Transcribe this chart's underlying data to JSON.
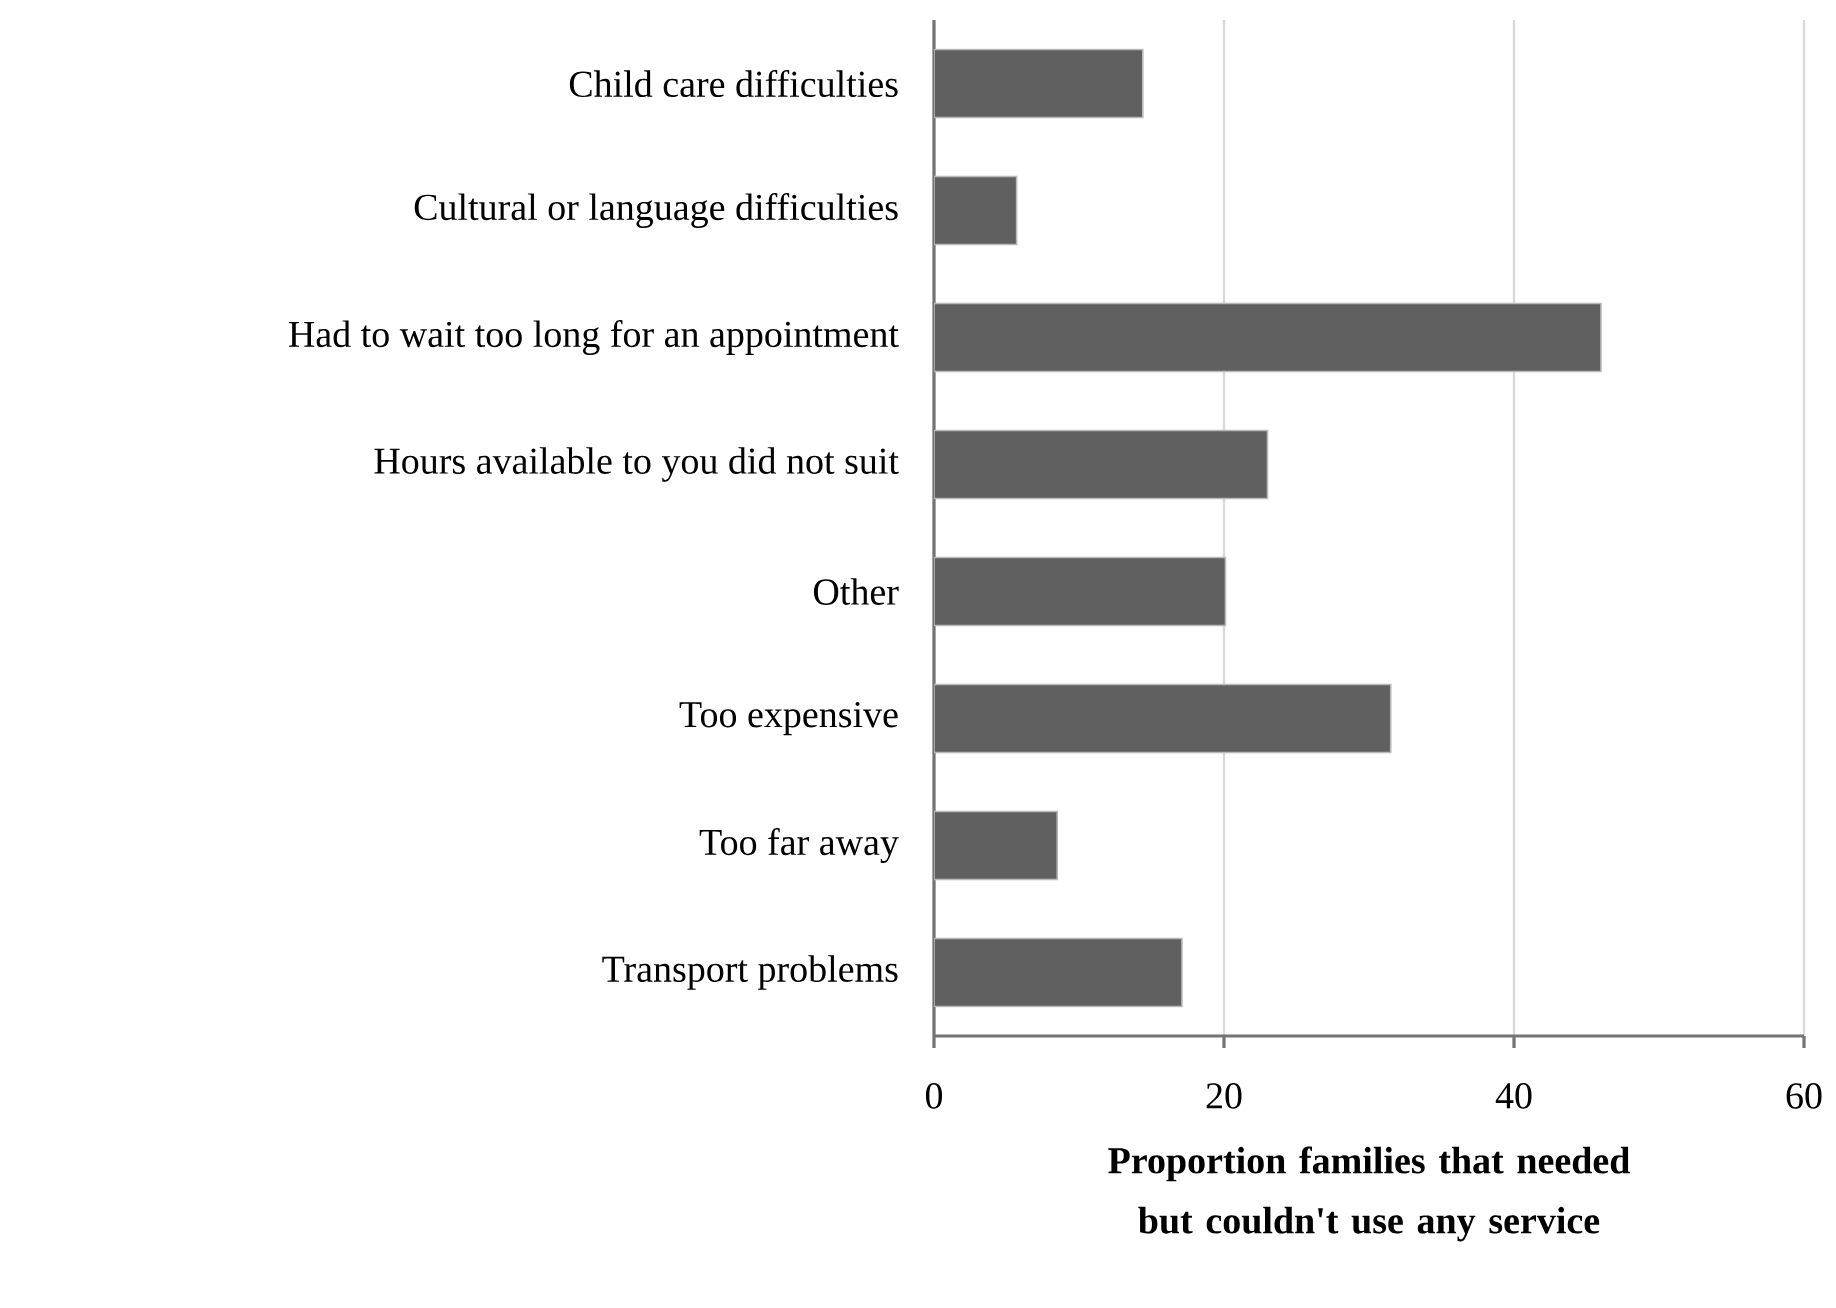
{
  "chart_data": {
    "type": "bar",
    "orientation": "horizontal",
    "categories": [
      "Child care difficulties",
      "Cultural or language difficulties",
      "Had to wait too long for an appointment",
      "Hours available to you did not suit",
      "Other",
      "Too expensive",
      "Too far away",
      "Transport problems"
    ],
    "values": [
      14.4,
      5.7,
      46.0,
      23.0,
      20.1,
      31.5,
      8.5,
      17.1
    ],
    "color": "#606060",
    "xlabel": "Proportion families that needed but couldn't use any service",
    "xlim": [
      0,
      60
    ],
    "xticks": [
      0,
      20,
      40,
      60
    ],
    "grid": "x"
  }
}
